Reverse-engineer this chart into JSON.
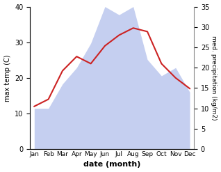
{
  "months": [
    "Jan",
    "Feb",
    "Mar",
    "Apr",
    "May",
    "Jun",
    "Jul",
    "Aug",
    "Sep",
    "Oct",
    "Nov",
    "Dec"
  ],
  "temp": [
    12,
    14,
    22,
    26,
    24,
    29,
    32,
    34,
    33,
    24,
    20,
    17
  ],
  "precip": [
    10,
    10,
    16,
    20,
    26,
    35,
    33,
    35,
    22,
    18,
    20,
    14
  ],
  "temp_color": "#cc2222",
  "precip_fill_color": "#c5cff0",
  "ylabel_left": "max temp (C)",
  "ylabel_right": "med. precipitation (kg/m2)",
  "xlabel": "date (month)",
  "ylim_left": [
    0,
    40
  ],
  "ylim_right": [
    0,
    35
  ],
  "yticks_left": [
    0,
    10,
    20,
    30,
    40
  ],
  "yticks_right": [
    0,
    5,
    10,
    15,
    20,
    25,
    30,
    35
  ],
  "bg_color": "#ffffff",
  "line_width": 1.5
}
